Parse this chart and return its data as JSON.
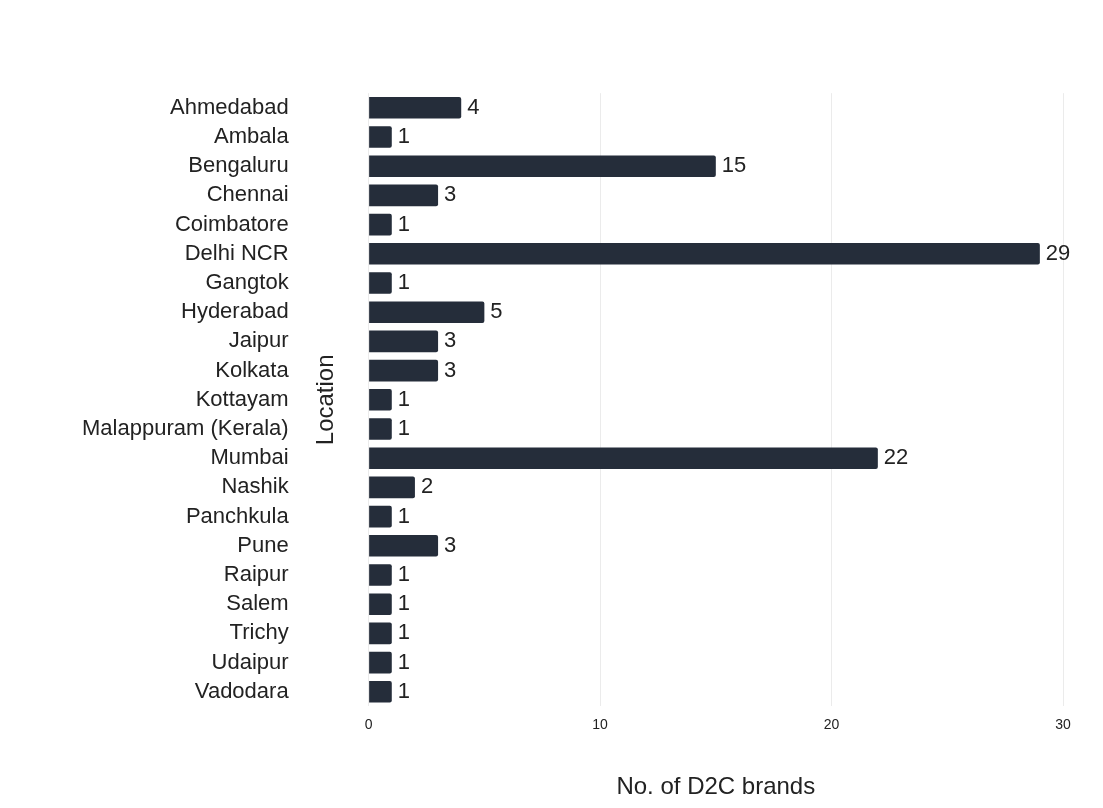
{
  "chart_data": {
    "type": "bar",
    "orientation": "horizontal",
    "xlabel": "No. of D2C brands",
    "ylabel": "Location",
    "categories": [
      "Ahmedabad",
      "Ambala",
      "Bengaluru",
      "Chennai",
      "Coimbatore",
      "Delhi NCR",
      "Gangtok",
      "Hyderabad",
      "Jaipur",
      "Kolkata",
      "Kottayam",
      "Malappuram (Kerala)",
      "Mumbai",
      "Nashik",
      "Panchkula",
      "Pune",
      "Raipur",
      "Salem",
      "Trichy",
      "Udaipur",
      "Vadodara"
    ],
    "values": [
      4,
      1,
      15,
      3,
      1,
      29,
      1,
      5,
      3,
      3,
      1,
      1,
      22,
      2,
      1,
      3,
      1,
      1,
      1,
      1,
      1
    ],
    "color": "#252d3a",
    "xlim": [
      0,
      30
    ],
    "xticks": [
      0,
      10,
      20,
      30
    ],
    "grid": "x",
    "data_labels": true,
    "legend": false
  }
}
